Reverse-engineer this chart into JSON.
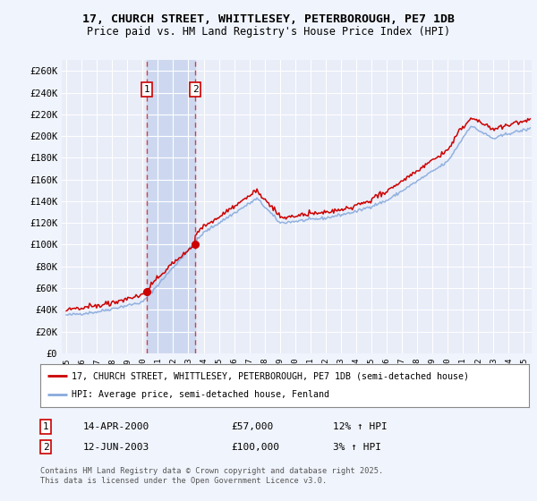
{
  "title_line1": "17, CHURCH STREET, WHITTLESEY, PETERBOROUGH, PE7 1DB",
  "title_line2": "Price paid vs. HM Land Registry's House Price Index (HPI)",
  "background_color": "#f0f4fc",
  "plot_bg_color": "#e8edf8",
  "grid_color": "#ffffff",
  "ylabel_ticks": [
    "£0",
    "£20K",
    "£40K",
    "£60K",
    "£80K",
    "£100K",
    "£120K",
    "£140K",
    "£160K",
    "£180K",
    "£200K",
    "£220K",
    "£240K",
    "£260K"
  ],
  "ytick_values": [
    0,
    20000,
    40000,
    60000,
    80000,
    100000,
    120000,
    140000,
    160000,
    180000,
    200000,
    220000,
    240000,
    260000
  ],
  "ylim": [
    0,
    270000
  ],
  "xlim_start": 1994.7,
  "xlim_end": 2025.5,
  "xticks": [
    1995,
    1996,
    1997,
    1998,
    1999,
    2000,
    2001,
    2002,
    2003,
    2004,
    2005,
    2006,
    2007,
    2008,
    2009,
    2010,
    2011,
    2012,
    2013,
    2014,
    2015,
    2016,
    2017,
    2018,
    2019,
    2020,
    2021,
    2022,
    2023,
    2024,
    2025
  ],
  "sale1_x": 2000.28,
  "sale1_y": 57000,
  "sale1_label": "1",
  "sale1_date": "14-APR-2000",
  "sale1_price": "£57,000",
  "sale1_hpi": "12% ↑ HPI",
  "sale2_x": 2003.45,
  "sale2_y": 100000,
  "sale2_label": "2",
  "sale2_date": "12-JUN-2003",
  "sale2_price": "£100,000",
  "sale2_hpi": "3% ↑ HPI",
  "legend_line1": "17, CHURCH STREET, WHITTLESEY, PETERBOROUGH, PE7 1DB (semi-detached house)",
  "legend_line2": "HPI: Average price, semi-detached house, Fenland",
  "footer_line1": "Contains HM Land Registry data © Crown copyright and database right 2025.",
  "footer_line2": "This data is licensed under the Open Government Licence v3.0.",
  "property_line_color": "#cc0000",
  "hpi_line_color": "#88aadd",
  "sale_marker_color": "#cc0000",
  "annotation_box_color": "#cc0000",
  "vline_color": "#cc4444",
  "shade_color": "#cdd8f0"
}
